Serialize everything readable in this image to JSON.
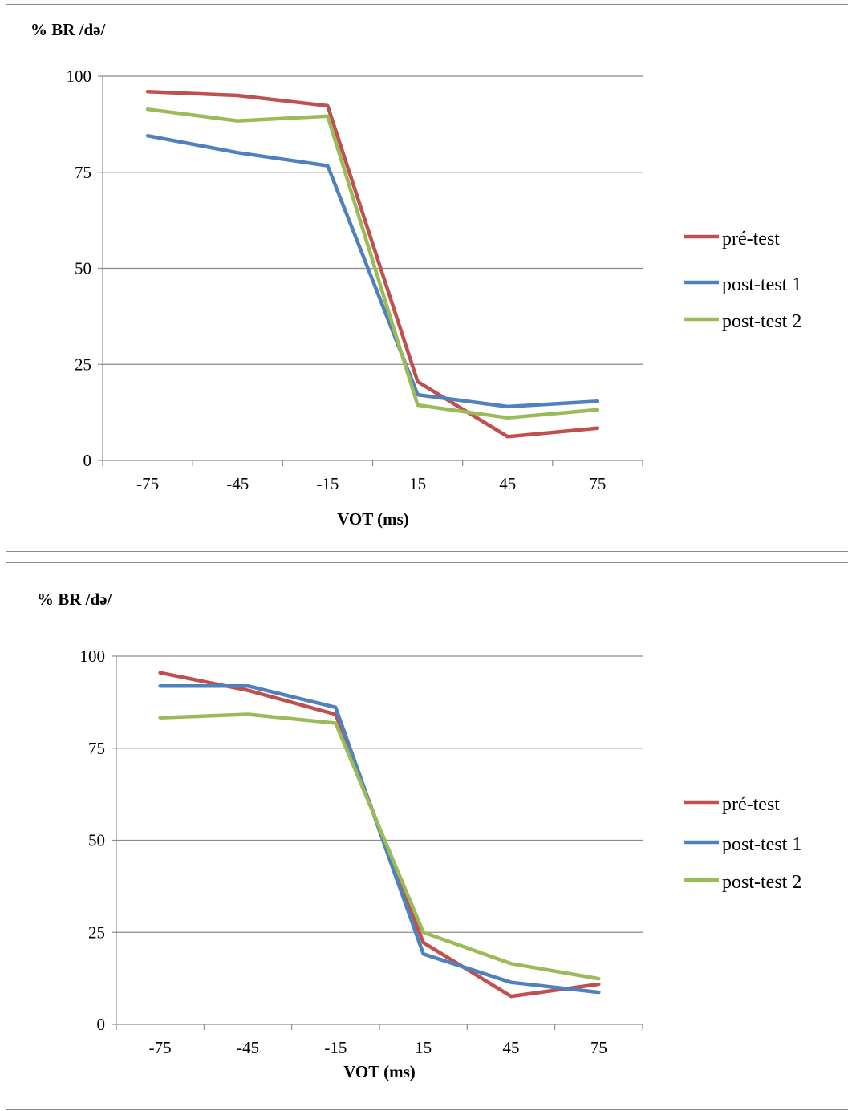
{
  "charts": [
    {
      "ylabel": "% BR /də/",
      "xlabel": "VOT (ms)",
      "legend": [
        "pré-test",
        "post-test 1",
        "post-test 2"
      ]
    },
    {
      "ylabel": "% BR /də/",
      "xlabel": "VOT (ms)",
      "legend": [
        "pré-test",
        "post-test 1",
        "post-test 2"
      ]
    }
  ],
  "chart_data": [
    {
      "type": "line",
      "x": [
        "-75",
        "-45",
        "-15",
        "15",
        "45",
        "75"
      ],
      "xlabel": "VOT (ms)",
      "ylabel": "% BR /də/",
      "ylim": [
        0,
        100
      ],
      "yticks": [
        0,
        25,
        50,
        75,
        100
      ],
      "grid": true,
      "legend_position": "right",
      "series": [
        {
          "name": "pré-test",
          "color": "#c0504d",
          "values": [
            96,
            95,
            92.3,
            20.5,
            6.2,
            8.4
          ]
        },
        {
          "name": "post-test 1",
          "color": "#4f81bd",
          "values": [
            84.5,
            80.1,
            76.7,
            17.1,
            14,
            15.4
          ]
        },
        {
          "name": "post-test 2",
          "color": "#9bbb59",
          "values": [
            91.4,
            88.4,
            89.6,
            14.4,
            11.1,
            13.2
          ]
        }
      ]
    },
    {
      "type": "line",
      "x": [
        "-75",
        "-45",
        "-15",
        "15",
        "45",
        "75"
      ],
      "xlabel": "VOT (ms)",
      "ylabel": "% BR /də/",
      "ylim": [
        0,
        100
      ],
      "yticks": [
        0,
        25,
        50,
        75,
        100
      ],
      "grid": true,
      "legend_position": "right",
      "series": [
        {
          "name": "pré-test",
          "color": "#c0504d",
          "values": [
            95.5,
            90.7,
            84.2,
            22.2,
            7.6,
            10.9
          ]
        },
        {
          "name": "post-test 1",
          "color": "#4f81bd",
          "values": [
            91.9,
            91.9,
            86.1,
            19.1,
            11.4,
            8.7
          ]
        },
        {
          "name": "post-test 2",
          "color": "#9bbb59",
          "values": [
            83.3,
            84.2,
            81.8,
            25,
            16.5,
            12.4
          ]
        }
      ]
    }
  ]
}
